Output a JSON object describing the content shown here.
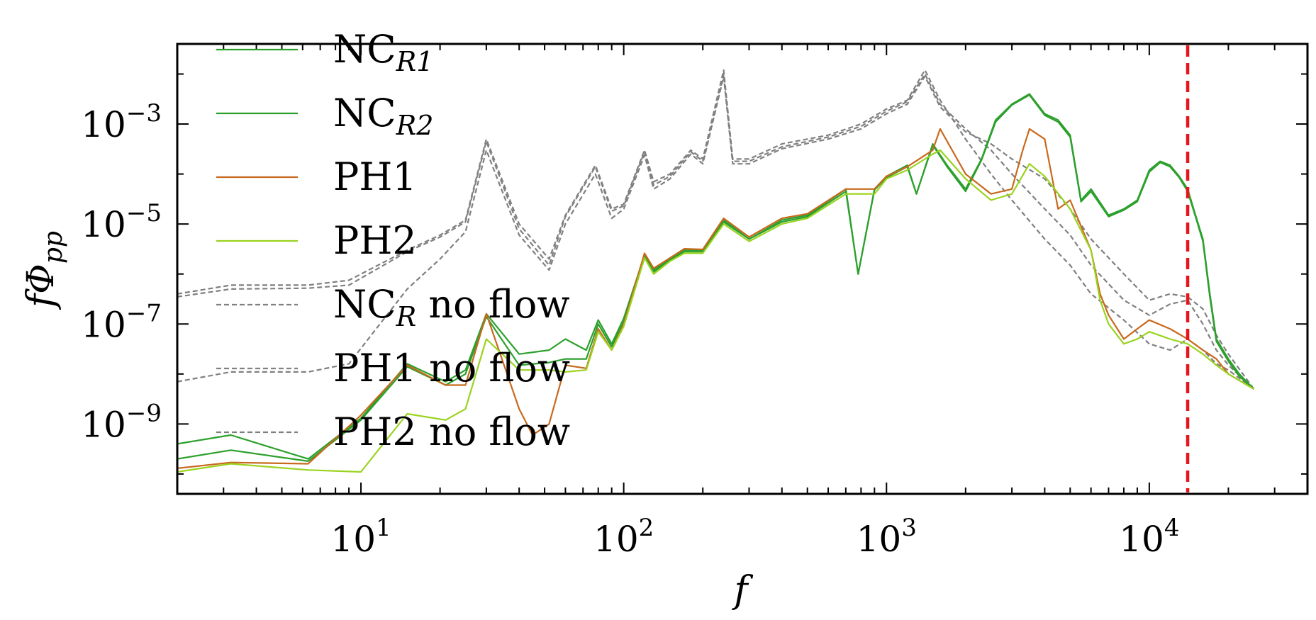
{
  "chart_data": {
    "type": "line",
    "title": "",
    "xlabel": "f",
    "ylabel": "fΦ_pp",
    "xscale": "log",
    "yscale": "log",
    "xlim": [
      2,
      40000
    ],
    "ylim": [
      4e-11,
      0.04
    ],
    "grid": false,
    "legend_position": "top-left",
    "x_ticks": [
      {
        "value": 10,
        "label": "10^1"
      },
      {
        "value": 100,
        "label": "10^2"
      },
      {
        "value": 1000,
        "label": "10^3"
      },
      {
        "value": 10000,
        "label": "10^4"
      }
    ],
    "y_ticks": [
      {
        "value": 1e-09,
        "label": "10^−9"
      },
      {
        "value": 1e-07,
        "label": "10^−7"
      },
      {
        "value": 1e-05,
        "label": "10^−5"
      },
      {
        "value": 0.001,
        "label": "10^−3"
      }
    ],
    "vertical_line": {
      "x": 14000,
      "color": "#e8141c",
      "style": "dashed"
    },
    "series": [
      {
        "name": "NC_R1",
        "color": "#2ca02c",
        "style": "solid",
        "x": [
          2,
          3.2,
          6.3,
          10,
          15,
          21,
          25,
          30,
          40,
          52,
          60,
          72,
          80,
          90,
          100,
          120,
          130,
          150,
          170,
          200,
          240,
          300,
          400,
          500,
          700,
          780,
          900,
          1000,
          1200,
          1300,
          1500,
          1700,
          2000,
          2300,
          2600,
          3000,
          3500,
          4000,
          4500,
          5000,
          5500,
          6000,
          7000,
          8000,
          9000,
          10000,
          11000,
          12000,
          13000,
          14000,
          15000,
          16000,
          17000,
          18000,
          20000,
          22000,
          25000
        ],
        "y": [
          4e-10,
          6e-10,
          2e-10,
          1.3e-09,
          1.6e-08,
          7e-09,
          1.2e-08,
          1.6e-07,
          2.5e-08,
          3e-08,
          5e-08,
          3e-08,
          1.2e-07,
          4e-08,
          1.3e-07,
          2.4e-06,
          1.2e-06,
          2e-06,
          3e-06,
          3e-06,
          1.2e-05,
          5e-06,
          1.2e-05,
          1.5e-05,
          5e-05,
          1e-06,
          5e-05,
          9e-05,
          0.00015,
          4e-05,
          0.0004,
          0.00015,
          5e-05,
          0.0002,
          0.0012,
          0.0025,
          0.004,
          0.0016,
          0.0012,
          0.0006,
          3e-05,
          5e-05,
          1.5e-05,
          2e-05,
          3e-05,
          0.00012,
          0.00018,
          0.00015,
          9e-05,
          5e-05,
          1.5e-05,
          5e-06,
          4e-07,
          5e-08,
          2e-08,
          1e-08,
          5e-09
        ]
      },
      {
        "name": "NC_R2",
        "color": "#2ca02c",
        "style": "solid",
        "x": [
          2,
          3.2,
          6.3,
          10,
          15,
          21,
          25,
          30,
          40,
          52,
          60,
          72,
          80,
          90,
          100,
          120,
          130,
          150,
          170,
          200,
          240,
          300,
          400,
          500,
          700,
          780,
          900,
          1000,
          1200,
          1300,
          1500,
          1700,
          2000,
          2300,
          2600,
          3000,
          3500,
          4000,
          4500,
          5000,
          5500,
          6000,
          7000,
          8000,
          9000,
          10000,
          11000,
          12000,
          13000,
          14000,
          15000,
          16000,
          17000,
          18000,
          20000,
          22000,
          25000
        ],
        "y": [
          2e-10,
          3e-10,
          1.8e-10,
          1.2e-09,
          1.4e-08,
          6e-09,
          1e-08,
          1.4e-07,
          1.5e-08,
          1.7e-08,
          2e-08,
          2e-08,
          1e-07,
          3.5e-08,
          1.1e-07,
          2.2e-06,
          1.1e-06,
          1.9e-06,
          2.8e-06,
          2.8e-06,
          1.1e-05,
          5e-06,
          1.1e-05,
          1.4e-05,
          4.5e-05,
          1e-06,
          4.8e-05,
          8.5e-05,
          0.00014,
          4e-05,
          0.00038,
          0.00014,
          4.5e-05,
          0.00019,
          0.0011,
          0.0024,
          0.0038,
          0.0015,
          0.0011,
          0.00055,
          2.8e-05,
          4.5e-05,
          1.4e-05,
          1.9e-05,
          2.8e-05,
          0.00011,
          0.00017,
          0.00014,
          8.5e-05,
          4.5e-05,
          1.4e-05,
          4.5e-06,
          3.5e-07,
          4.5e-08,
          1.8e-08,
          9e-09,
          5e-09
        ]
      },
      {
        "name": "PH1",
        "color": "#c8691e",
        "style": "solid",
        "x": [
          2,
          3.2,
          6.3,
          10,
          15,
          21,
          25,
          30,
          40,
          45,
          52,
          60,
          72,
          80,
          90,
          100,
          120,
          130,
          150,
          170,
          200,
          240,
          300,
          400,
          500,
          700,
          900,
          1000,
          1200,
          1500,
          1600,
          2000,
          2500,
          3000,
          3300,
          3500,
          4000,
          4500,
          5000,
          6000,
          6500,
          7000,
          8000,
          9000,
          10000,
          12000,
          14000,
          16000,
          18000,
          20000,
          25000
        ],
        "y": [
          1.3e-10,
          1.7e-10,
          1.6e-10,
          1.5e-09,
          1.5e-08,
          6e-09,
          6e-09,
          1.6e-07,
          2e-09,
          6e-10,
          1e-09,
          1.5e-08,
          1.3e-08,
          8e-08,
          3e-08,
          1e-07,
          2.6e-06,
          1.3e-06,
          2.1e-06,
          3.2e-06,
          3.1e-06,
          1.3e-05,
          5.5e-06,
          1.3e-05,
          1.6e-05,
          5e-05,
          5e-05,
          9e-05,
          0.00014,
          0.0003,
          0.0008,
          0.0001,
          4e-05,
          5e-05,
          0.0003,
          0.0008,
          0.0005,
          2e-05,
          3e-05,
          3e-06,
          4e-07,
          1.5e-07,
          5e-08,
          8e-08,
          1.2e-07,
          8e-08,
          5e-08,
          3e-08,
          2e-08,
          1e-08,
          5e-09
        ]
      },
      {
        "name": "PH2",
        "color": "#9ad31f",
        "style": "solid",
        "x": [
          2,
          3.2,
          6.3,
          10,
          15,
          21,
          25,
          30,
          40,
          52,
          60,
          72,
          80,
          90,
          100,
          120,
          130,
          150,
          170,
          200,
          240,
          300,
          400,
          500,
          700,
          900,
          1000,
          1200,
          1500,
          1600,
          2000,
          2500,
          3000,
          3500,
          4000,
          5000,
          6000,
          6500,
          7000,
          8000,
          9000,
          10000,
          12000,
          14000,
          16000,
          18000,
          20000,
          25000
        ],
        "y": [
          1.1e-10,
          1.6e-10,
          1.2e-10,
          1.1e-10,
          1.6e-09,
          1.2e-09,
          2e-09,
          5e-08,
          1.2e-08,
          1.2e-08,
          1.1e-08,
          1.2e-08,
          7e-08,
          3e-08,
          9e-08,
          2.1e-06,
          1e-06,
          1.8e-06,
          2.6e-06,
          2.6e-06,
          1e-05,
          4.5e-06,
          1e-05,
          1.3e-05,
          4e-05,
          4e-05,
          8e-05,
          0.00012,
          0.00025,
          0.0003,
          8e-05,
          3e-05,
          4e-05,
          0.00016,
          9e-05,
          2e-05,
          3e-06,
          3e-07,
          1e-07,
          4e-08,
          5e-08,
          7e-08,
          5e-08,
          4e-08,
          2.5e-08,
          1.5e-08,
          1e-08,
          5e-09
        ]
      },
      {
        "name": "NC_R no flow",
        "color": "#808080",
        "style": "dashed",
        "x": [
          2,
          3.2,
          6.3,
          9,
          15,
          20,
          25,
          30,
          40,
          52,
          60,
          78,
          90,
          100,
          120,
          130,
          150,
          180,
          200,
          240,
          260,
          300,
          400,
          600,
          800,
          1000,
          1200,
          1400,
          1600,
          2000,
          2500,
          3000,
          4000,
          5000,
          6000,
          8000,
          10000,
          12000,
          14000,
          16000,
          18000,
          20000,
          25000
        ],
        "y": [
          4e-07,
          6e-07,
          6e-07,
          7.5e-07,
          3e-06,
          6e-06,
          1.2e-05,
          0.0005,
          1e-05,
          2e-06,
          1.5e-05,
          0.00015,
          2e-05,
          2.5e-05,
          0.0003,
          7e-05,
          0.0001,
          0.0003,
          0.0002,
          0.012,
          0.0002,
          0.0002,
          0.0004,
          0.0006,
          0.001,
          0.002,
          0.003,
          0.012,
          0.003,
          0.0005,
          0.0001,
          3e-05,
          5e-06,
          1.5e-06,
          4e-07,
          1.2e-07,
          4e-08,
          3e-08,
          5e-08,
          3e-08,
          1.6e-08,
          1.2e-08,
          5e-09
        ]
      },
      {
        "name": "PH1 no flow",
        "color": "#808080",
        "style": "dashed",
        "x": [
          2,
          3.2,
          6.3,
          9,
          15,
          20,
          25,
          30,
          40,
          52,
          60,
          78,
          90,
          100,
          120,
          130,
          150,
          180,
          200,
          240,
          260,
          300,
          400,
          600,
          800,
          1000,
          1200,
          1400,
          1600,
          2000,
          2500,
          3000,
          4000,
          5000,
          6000,
          8000,
          10000,
          12000,
          14000,
          16000,
          18000,
          20000,
          25000
        ],
        "y": [
          3.5e-07,
          5e-07,
          5.2e-07,
          6e-07,
          2.8e-06,
          5.5e-06,
          1.1e-05,
          0.00045,
          8e-06,
          1.5e-06,
          1.4e-05,
          0.00014,
          1.8e-05,
          2.3e-05,
          0.00028,
          6e-05,
          9e-05,
          0.00028,
          0.00018,
          0.01,
          0.00018,
          0.00018,
          0.00035,
          0.00055,
          0.0009,
          0.0018,
          0.0028,
          0.01,
          0.0025,
          0.0008,
          0.0003,
          0.0001,
          2e-05,
          6e-06,
          1.5e-06,
          3e-07,
          1.5e-07,
          2.5e-07,
          3e-07,
          1e-07,
          3e-08,
          1.5e-08,
          5e-09
        ]
      },
      {
        "name": "PH2 no flow",
        "color": "#808080",
        "style": "dashed",
        "x": [
          2,
          3.2,
          6.3,
          9,
          15,
          20,
          25,
          30,
          40,
          52,
          60,
          78,
          90,
          100,
          120,
          130,
          150,
          180,
          200,
          240,
          260,
          300,
          400,
          600,
          800,
          1000,
          1200,
          1400,
          1600,
          2000,
          2500,
          3000,
          4000,
          5000,
          6000,
          8000,
          10000,
          12000,
          14000,
          16000,
          18000,
          20000,
          25000
        ],
        "y": [
          7e-09,
          1.1e-08,
          1.1e-08,
          1.6e-08,
          5e-07,
          2e-06,
          7e-06,
          0.0003,
          6e-06,
          1.2e-06,
          1e-05,
          0.0001,
          1.3e-05,
          2e-05,
          0.00024,
          5e-05,
          8e-05,
          0.00025,
          0.00016,
          0.009,
          0.00016,
          0.00016,
          0.00032,
          0.0005,
          0.0008,
          0.0016,
          0.0025,
          0.009,
          0.0022,
          0.0007,
          0.0004,
          0.0002,
          8e-05,
          2e-05,
          5e-06,
          1e-06,
          3e-07,
          4e-07,
          3.5e-07,
          2e-07,
          6e-08,
          2.5e-08,
          5e-09
        ]
      }
    ],
    "legend_entries": [
      {
        "base": "NC",
        "sub": "R1",
        "rest": ""
      },
      {
        "base": "NC",
        "sub": "R2",
        "rest": ""
      },
      {
        "base": "PH1",
        "sub": "",
        "rest": ""
      },
      {
        "base": "PH2",
        "sub": "",
        "rest": ""
      },
      {
        "base": "NC",
        "sub": "R",
        "rest": " no flow"
      },
      {
        "base": "PH1 no flow",
        "sub": "",
        "rest": ""
      },
      {
        "base": "PH2 no flow",
        "sub": "",
        "rest": ""
      }
    ],
    "axis_label_parts": {
      "x": {
        "main": "f"
      },
      "y": {
        "main": "fΦ",
        "sub": "pp"
      }
    },
    "tick_label_parts": {
      "x": [
        {
          "base": "10",
          "exp": "1"
        },
        {
          "base": "10",
          "exp": "2"
        },
        {
          "base": "10",
          "exp": "3"
        },
        {
          "base": "10",
          "exp": "4"
        }
      ],
      "y": [
        {
          "base": "10",
          "exp": "−9"
        },
        {
          "base": "10",
          "exp": "−7"
        },
        {
          "base": "10",
          "exp": "−5"
        },
        {
          "base": "10",
          "exp": "−3"
        }
      ]
    }
  }
}
